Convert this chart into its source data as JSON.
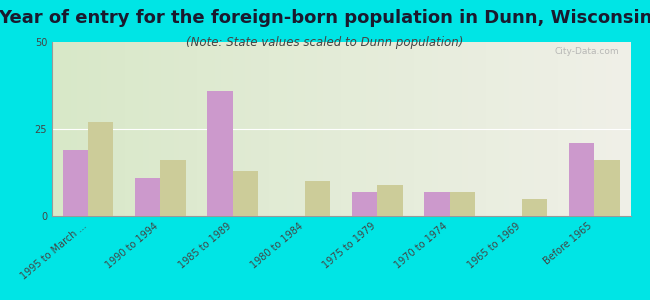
{
  "title": "Year of entry for the foreign-born population in Dunn, Wisconsin",
  "subtitle": "(Note: State values scaled to Dunn population)",
  "categories": [
    "1995 to March ...",
    "1990 to 1994",
    "1985 to 1989",
    "1980 to 1984",
    "1975 to 1979",
    "1970 to 1974",
    "1965 to 1969",
    "Before 1965"
  ],
  "dunn_values": [
    19,
    11,
    36,
    0,
    7,
    7,
    0,
    21
  ],
  "wisconsin_values": [
    27,
    16,
    13,
    10,
    9,
    7,
    5,
    16
  ],
  "dunn_color": "#cc99cc",
  "wisconsin_color": "#cccc99",
  "bg_left": "#d8e8c8",
  "bg_right": "#f0f0e8",
  "outer_bg": "#00e5e5",
  "ylim": [
    0,
    50
  ],
  "yticks": [
    0,
    25,
    50
  ],
  "bar_width": 0.35,
  "title_fontsize": 13,
  "subtitle_fontsize": 8.5,
  "tick_fontsize": 7,
  "legend_fontsize": 9,
  "watermark": "City-Data.com"
}
